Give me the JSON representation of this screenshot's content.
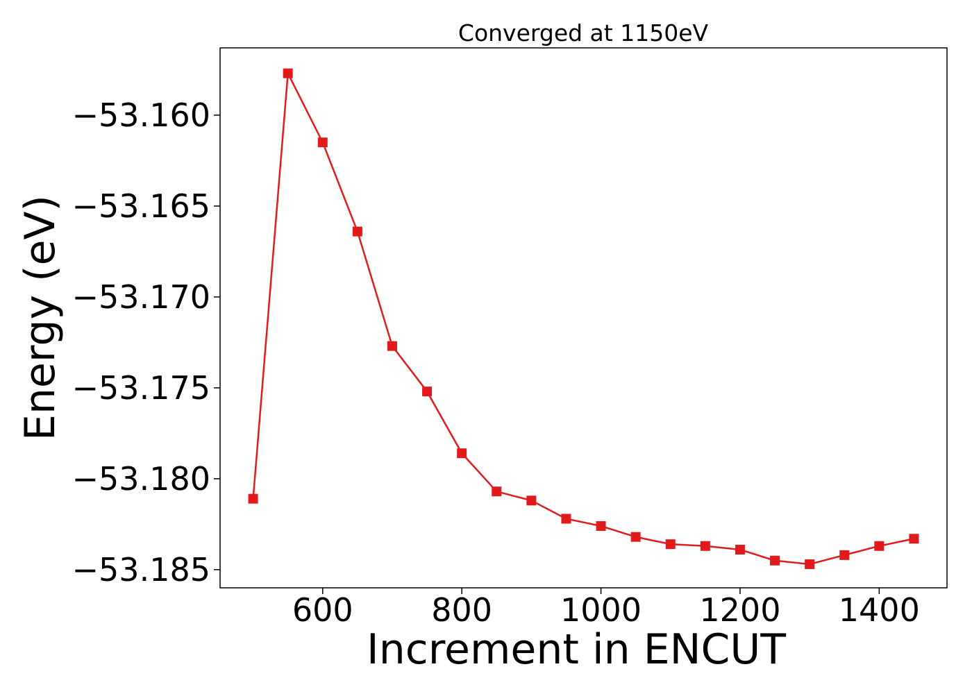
{
  "chart_data": {
    "type": "line",
    "title": "Converged at 1150eV",
    "xlabel": "Increment in ENCUT",
    "ylabel": "Energy (eV)",
    "xlim": [
      452.5,
      1497.5
    ],
    "ylim": [
      -53.186,
      -53.1563
    ],
    "xticks": [
      600,
      800,
      1000,
      1200,
      1400
    ],
    "xtick_labels": [
      "600",
      "800",
      "1000",
      "1200",
      "1400"
    ],
    "yticks": [
      -53.16,
      -53.165,
      -53.17,
      -53.175,
      -53.18,
      -53.185
    ],
    "ytick_labels": [
      "−53.160",
      "−53.165",
      "−53.170",
      "−53.175",
      "−53.180",
      "−53.185"
    ],
    "grid": false,
    "series": [
      {
        "color": "#e31a1c",
        "marker": "square",
        "x": [
          500,
          550,
          600,
          650,
          700,
          750,
          800,
          850,
          900,
          950,
          1000,
          1050,
          1100,
          1150,
          1200,
          1250,
          1300,
          1350,
          1400,
          1450
        ],
        "y": [
          -53.1811,
          -53.1577,
          -53.1615,
          -53.1664,
          -53.1727,
          -53.1752,
          -53.1786,
          -53.1807,
          -53.1812,
          -53.1822,
          -53.1826,
          -53.1832,
          -53.1836,
          -53.1837,
          -53.1839,
          -53.1845,
          -53.1847,
          -53.1842,
          -53.1837,
          -53.1833
        ]
      }
    ]
  }
}
